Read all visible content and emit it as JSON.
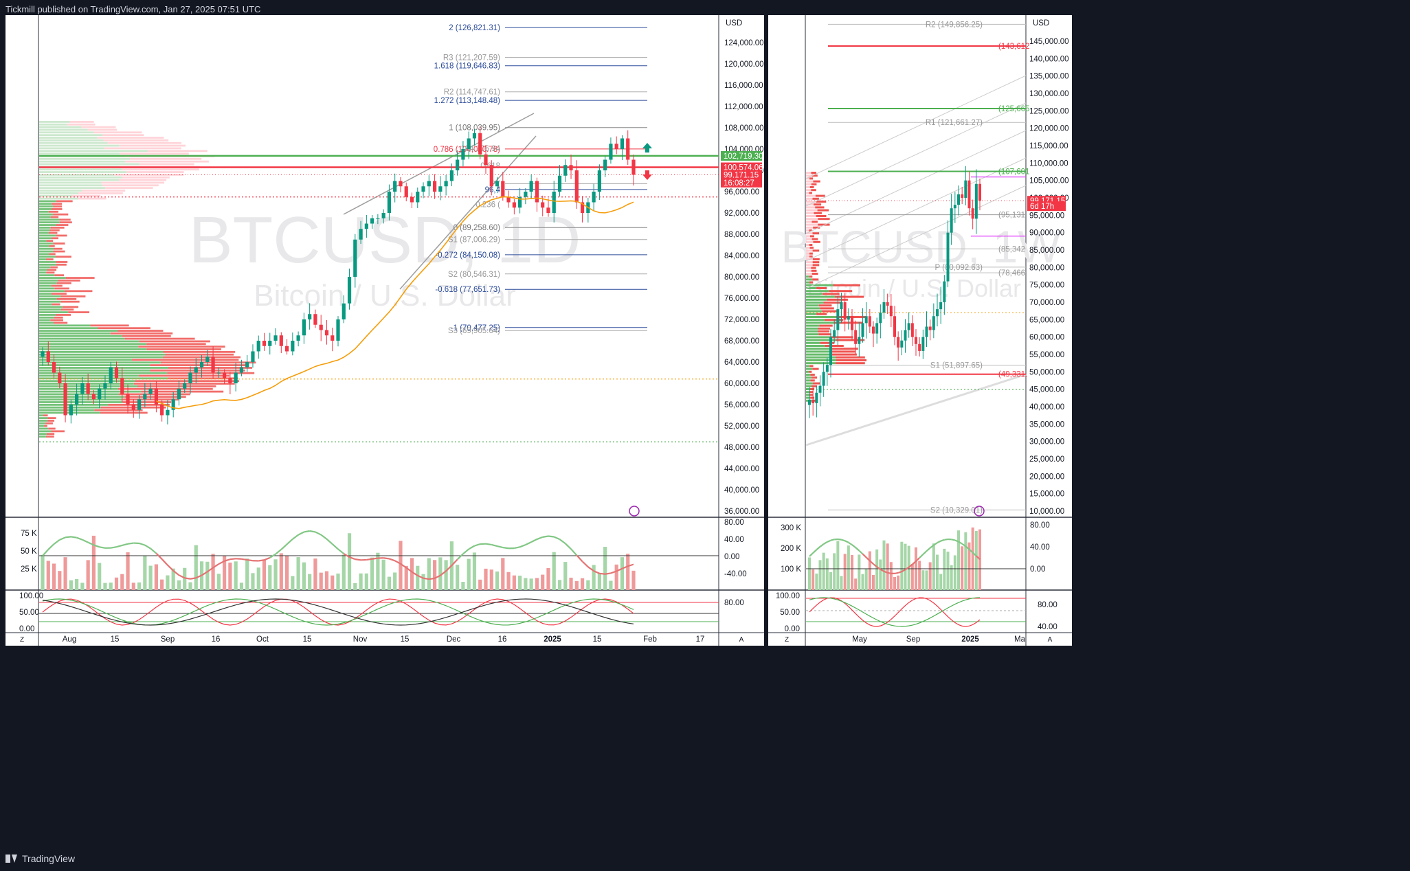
{
  "header": {
    "published": "Tickmill published on TradingView.com, Jan 27, 2025 07:51 UTC"
  },
  "footer": {
    "brand": "TradingView"
  },
  "colors": {
    "up": "#089981",
    "down": "#f23645",
    "upBar": "#4caf50",
    "fib": "#2a4a9a",
    "pivot": "#999999",
    "ma": "#f59d0a",
    "green_line": "#4caf50",
    "red_line": "#f23645"
  },
  "left_panel": {
    "currency": "USD",
    "watermark_symbol": "BTCUSD, 1D",
    "watermark_name": "Bitcoin / U.S. Dollar",
    "price_scale": [
      "124,000.00",
      "120,000.00",
      "116,000.00",
      "112,000.00",
      "108,000.00",
      "104,000.00",
      "100,000.00",
      "96,000.00",
      "92,000.00",
      "88,000.00",
      "84,000.00",
      "80,000.00",
      "76,000.00",
      "72,000.00",
      "68,000.00",
      "64,000.00",
      "60,000.00",
      "56,000.00",
      "52,000.00",
      "48,000.00",
      "44,000.00",
      "40,000.00",
      "36,000.00"
    ],
    "price_tags": [
      {
        "text": "102,719.30",
        "color": "#4caf50",
        "price": 102719.3
      },
      {
        "text": "100,574.06",
        "color": "#f23645",
        "price": 100574.06
      },
      {
        "text": "99,171.15",
        "color": "#f23645",
        "price": 99171.15
      },
      {
        "text": "16:08:27",
        "color": "#f23645",
        "price": 97700
      }
    ],
    "fib_labels": [
      {
        "text": "2 (126,821.31)",
        "price": 126821.31,
        "color": "#2a4a9a"
      },
      {
        "text": "R3 (121,207.59)",
        "price": 121207.59,
        "color": "#999999"
      },
      {
        "text": "1.618 (119,646.83)",
        "price": 119646.83,
        "color": "#2a4a9a"
      },
      {
        "text": "R2 (114,747.61)",
        "price": 114747.61,
        "color": "#999999"
      },
      {
        "text": "1.272 (113,148.48)",
        "price": 113148.48,
        "color": "#2a4a9a"
      },
      {
        "text": "1 (108,039.95)",
        "price": 108039.95,
        "color": "#777777"
      },
      {
        "text": "0.786 (104,020.78)",
        "price": 104020.78,
        "color": "#f23645"
      },
      {
        "text": "104,106.94",
        "price": 104106.94,
        "color": "#999999"
      },
      {
        "text": "0.618",
        "price": 100900,
        "color": "#999999"
      },
      {
        "text": "P (",
        "price": 97500,
        "color": "#999999"
      },
      {
        "text": "96,4",
        "price": 96400,
        "color": "#2a4a9a"
      },
      {
        "text": "0.236 (",
        "price": 93600,
        "color": "#999999"
      },
      {
        "text": "0 (89,258.60)",
        "price": 89258.6,
        "color": "#777777"
      },
      {
        "text": "S1 (87,006.29)",
        "price": 87006.29,
        "color": "#999999"
      },
      {
        "text": "-0.272 (84,150.08)",
        "price": 84150.08,
        "color": "#2a4a9a"
      },
      {
        "text": "S2 (80,546.31)",
        "price": 80546.31,
        "color": "#999999"
      },
      {
        "text": "-0.618 (77,651.73)",
        "price": 77651.73,
        "color": "#2a4a9a"
      },
      {
        "text": "-1 (70,477.25)",
        "price": 70477.25,
        "color": "#2a4a9a"
      },
      {
        "text": "S3 (69,905.64)",
        "price": 69905.64,
        "color": "#999999"
      }
    ],
    "x_axis": [
      "Aug",
      "15",
      "Sep",
      "16",
      "Oct",
      "15",
      "Nov",
      "15",
      "Dec",
      "16",
      "2025",
      "15",
      "Feb",
      "17"
    ],
    "volume_scale": [
      "75 K",
      "50 K",
      "25 K"
    ],
    "osc1_scale": [
      "80.00",
      "40.00",
      "0.00",
      "-40.00"
    ],
    "osc2_scale_left": [
      "100.00",
      "50.00",
      "0.00"
    ],
    "osc2_scale_right": [
      "80.00"
    ],
    "corner_z": "Z",
    "corner_a": "A"
  },
  "right_panel": {
    "currency": "USD",
    "watermark_symbol": "BTCUSD, 1W",
    "watermark_name": "Bitcoin / U.S. Dollar",
    "price_scale": [
      "145,000.00",
      "140,000.00",
      "135,000.00",
      "130,000.00",
      "125,000.00",
      "120,000.00",
      "115,000.00",
      "110,000.00",
      "105,000.00",
      "100,000.00",
      "95,000.00",
      "90,000.00",
      "85,000.00",
      "80,000.00",
      "75,000.00",
      "70,000.00",
      "65,000.00",
      "60,000.00",
      "55,000.00",
      "50,000.00",
      "45,000.00",
      "40,000.00",
      "35,000.00",
      "30,000.00",
      "25,000.00",
      "20,000.00",
      "15,000.00",
      "10,000.00"
    ],
    "price_tags": [
      {
        "text": "99,171.15",
        "color": "#f23645",
        "price": 99171.15
      },
      {
        "text": "6d 17h",
        "color": "#f23645",
        "price": 97600
      }
    ],
    "level_labels": [
      {
        "text": "R2 (149,856.25)",
        "price": 149856.25,
        "color": "#999999"
      },
      {
        "text": "(143,612",
        "price": 143612,
        "color": "#f23645"
      },
      {
        "text": "(125,665",
        "price": 125665,
        "color": "#4caf50"
      },
      {
        "text": "R1 (121,661.27)",
        "price": 121661.27,
        "color": "#999999"
      },
      {
        "text": "(107,601",
        "price": 107601,
        "color": "#4caf50"
      },
      {
        "text": "(95,131",
        "price": 95131,
        "color": "#999999"
      },
      {
        "text": "(85,342",
        "price": 85342,
        "color": "#999999"
      },
      {
        "text": "P (80,092.63)",
        "price": 80092.63,
        "color": "#999999"
      },
      {
        "text": "(78,466",
        "price": 78466,
        "color": "#999999"
      },
      {
        "text": "S1 (51,897.65)",
        "price": 51897.65,
        "color": "#999999"
      },
      {
        "text": "(49,331.",
        "price": 49331,
        "color": "#f23645"
      },
      {
        "text": "S2 (10,329.01)",
        "price": 10329.01,
        "color": "#999999"
      }
    ],
    "x_axis": [
      "May",
      "Sep",
      "2025",
      "Ma"
    ],
    "volume_scale": [
      "300 K",
      "200 K",
      "100 K"
    ],
    "osc1_scale": [
      "80.00",
      "40.00",
      "0.00"
    ],
    "osc2_scale_left": [
      "100.00",
      "50.00",
      "0.00"
    ],
    "osc2_scale_right": [
      "80.00",
      "40.00"
    ],
    "corner_z": "Z",
    "corner_a": "A"
  },
  "chart_data": [
    {
      "type": "candlestick",
      "title": "BTCUSD, 1D",
      "subtitle": "Bitcoin / U.S. Dollar",
      "ylim": [
        34000,
        130000
      ],
      "x": [
        "Aug",
        "15",
        "Sep",
        "16",
        "Oct",
        "15",
        "Nov",
        "15",
        "Dec",
        "16",
        "2025",
        "15",
        "Feb",
        "17"
      ],
      "close_series_approx": [
        66000,
        64000,
        62000,
        60000,
        54000,
        56000,
        58000,
        60000,
        58000,
        57000,
        59000,
        60000,
        63000,
        61000,
        58000,
        56000,
        55000,
        57000,
        58000,
        59000,
        56000,
        54000,
        55000,
        57000,
        59000,
        60000,
        62000,
        63000,
        64000,
        65000,
        62000,
        62000,
        61000,
        60000,
        62000,
        63000,
        64000,
        66000,
        68000,
        67000,
        68000,
        69000,
        67000,
        66000,
        68000,
        69000,
        72000,
        73000,
        71000,
        70000,
        69000,
        68000,
        72000,
        75000,
        80000,
        87000,
        89000,
        90000,
        91000,
        91000,
        92000,
        96000,
        98000,
        97000,
        95000,
        94000,
        96000,
        97000,
        98000,
        96000,
        97000,
        98000,
        100000,
        102000,
        104000,
        106000,
        107000,
        103000,
        101000,
        97000,
        98000,
        95000,
        94000,
        93000,
        95000,
        96000,
        98000,
        94000,
        93000,
        92000,
        96000,
        99000,
        101000,
        100000,
        94000,
        92000,
        94000,
        96000,
        100000,
        102000,
        105000,
        104000,
        106000,
        102000,
        99171.15
      ],
      "last": 99171.15,
      "levels": {
        "green": 102719.3,
        "red": 100574.06
      }
    },
    {
      "type": "candlestick",
      "title": "BTCUSD, 1W",
      "subtitle": "Bitcoin / U.S. Dollar",
      "ylim": [
        8000,
        152000
      ],
      "x": [
        "May",
        "Sep",
        "2025",
        "Ma"
      ],
      "close_series_approx": [
        42000,
        41000,
        44000,
        46000,
        50000,
        52000,
        60000,
        62000,
        68000,
        70000,
        65000,
        66000,
        62000,
        58000,
        60000,
        64000,
        66000,
        63000,
        61000,
        64000,
        67000,
        70000,
        69000,
        66000,
        60000,
        57000,
        59000,
        62000,
        64000,
        60000,
        58000,
        56000,
        60000,
        63000,
        62000,
        66000,
        68000,
        70000,
        76000,
        90000,
        97000,
        98000,
        101000,
        100000,
        105000,
        97000,
        94000,
        104000,
        99171.15
      ],
      "last": 99171.15
    }
  ]
}
